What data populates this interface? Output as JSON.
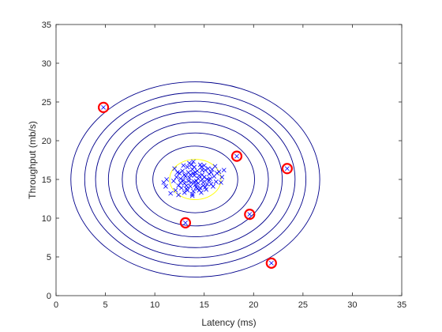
{
  "chart_data": {
    "type": "scatter",
    "title": "",
    "xlabel": "Latency (ms)",
    "ylabel": "Throughput (mb/s)",
    "xlim": [
      0,
      35
    ],
    "ylim": [
      0,
      35
    ],
    "xticks": [
      0,
      5,
      10,
      15,
      20,
      25,
      30,
      35
    ],
    "yticks": [
      0,
      5,
      10,
      15,
      20,
      25,
      30,
      35
    ],
    "grid": false,
    "box": true,
    "colors": {
      "points": "#0000ff",
      "contours": "#00008b",
      "inner_contour": "#ffff00",
      "anomaly_circle": "#ff0000",
      "axes": "#262626"
    },
    "gaussian": {
      "mean": [
        14.1,
        15.0
      ],
      "contours": [
        {
          "rx": 2.6,
          "ry": 2.6,
          "color": "#ffff00"
        },
        {
          "rx": 4.3,
          "ry": 4.3,
          "color": "#00008b"
        },
        {
          "rx": 6.0,
          "ry": 6.0,
          "color": "#00008b"
        },
        {
          "rx": 7.4,
          "ry": 7.4,
          "color": "#00008b"
        },
        {
          "rx": 8.8,
          "ry": 8.8,
          "color": "#00008b"
        },
        {
          "rx": 10.1,
          "ry": 10.1,
          "color": "#00008b"
        },
        {
          "rx": 11.2,
          "ry": 11.2,
          "color": "#00008b"
        },
        {
          "rx": 12.6,
          "ry": 12.6,
          "color": "#00008b"
        }
      ]
    },
    "points_marker": "x",
    "points": [
      [
        13.0,
        14.5
      ],
      [
        13.5,
        15.2
      ],
      [
        14.2,
        14.8
      ],
      [
        14.8,
        15.6
      ],
      [
        15.3,
        14.4
      ],
      [
        12.5,
        15.8
      ],
      [
        13.8,
        16.3
      ],
      [
        14.6,
        13.9
      ],
      [
        15.7,
        15.9
      ],
      [
        13.2,
        13.8
      ],
      [
        14.0,
        15.5
      ],
      [
        14.9,
        14.6
      ],
      [
        12.9,
        14.9
      ],
      [
        13.6,
        14.1
      ],
      [
        15.1,
        16.2
      ],
      [
        14.4,
        15.1
      ],
      [
        13.4,
        15.9
      ],
      [
        15.5,
        14.9
      ],
      [
        12.4,
        14.2
      ],
      [
        14.7,
        16.6
      ],
      [
        13.9,
        13.5
      ],
      [
        16.0,
        15.4
      ],
      [
        12.8,
        16.1
      ],
      [
        15.9,
        14.1
      ],
      [
        13.1,
        15.4
      ],
      [
        14.3,
        16.1
      ],
      [
        14.1,
        14.3
      ],
      [
        15.0,
        15.3
      ],
      [
        12.2,
        15.3
      ],
      [
        13.7,
        14.6
      ],
      [
        16.3,
        15.8
      ],
      [
        14.5,
        13.6
      ],
      [
        13.3,
        16.6
      ],
      [
        15.4,
        16.4
      ],
      [
        12.7,
        13.9
      ],
      [
        14.8,
        15.0
      ],
      [
        13.9,
        15.8
      ],
      [
        15.6,
        15.1
      ],
      [
        12.6,
        14.6
      ],
      [
        14.2,
        14.0
      ],
      [
        16.5,
        16.0
      ],
      [
        13.0,
        13.3
      ],
      [
        14.6,
        16.9
      ],
      [
        15.2,
        13.7
      ],
      [
        11.9,
        14.8
      ],
      [
        13.5,
        17.1
      ],
      [
        14.9,
        14.2
      ],
      [
        16.2,
        14.7
      ],
      [
        13.8,
        13.1
      ],
      [
        12.9,
        16.8
      ],
      [
        14.0,
        16.6
      ],
      [
        15.8,
        16.3
      ],
      [
        12.3,
        15.9
      ],
      [
        14.7,
        13.3
      ],
      [
        13.2,
        14.2
      ],
      [
        15.3,
        15.0
      ],
      [
        14.4,
        14.5
      ],
      [
        13.6,
        15.6
      ],
      [
        16.8,
        15.3
      ],
      [
        12.1,
        13.6
      ],
      [
        14.1,
        15.9
      ],
      [
        15.1,
        14.0
      ],
      [
        13.4,
        14.8
      ],
      [
        14.8,
        16.2
      ],
      [
        15.7,
        14.4
      ],
      [
        12.6,
        15.1
      ],
      [
        13.7,
        16.9
      ],
      [
        14.3,
        13.8
      ],
      [
        16.1,
        16.7
      ],
      [
        13.0,
        15.6
      ],
      [
        11.2,
        15.0
      ],
      [
        11.1,
        14.1
      ],
      [
        10.9,
        14.6
      ],
      [
        17.0,
        16.2
      ],
      [
        16.7,
        14.6
      ],
      [
        12.0,
        16.4
      ],
      [
        14.5,
        15.5
      ],
      [
        13.3,
        13.6
      ],
      [
        15.5,
        15.7
      ],
      [
        14.0,
        14.7
      ],
      [
        11.6,
        13.2
      ],
      [
        12.4,
        13.0
      ],
      [
        13.8,
        12.9
      ],
      [
        15.0,
        16.8
      ],
      [
        13.9,
        17.3
      ]
    ],
    "anomalies": [
      [
        4.8,
        24.3
      ],
      [
        18.3,
        18.0
      ],
      [
        23.4,
        16.4
      ],
      [
        13.1,
        9.4
      ],
      [
        19.6,
        10.5
      ],
      [
        21.8,
        4.2
      ]
    ]
  }
}
